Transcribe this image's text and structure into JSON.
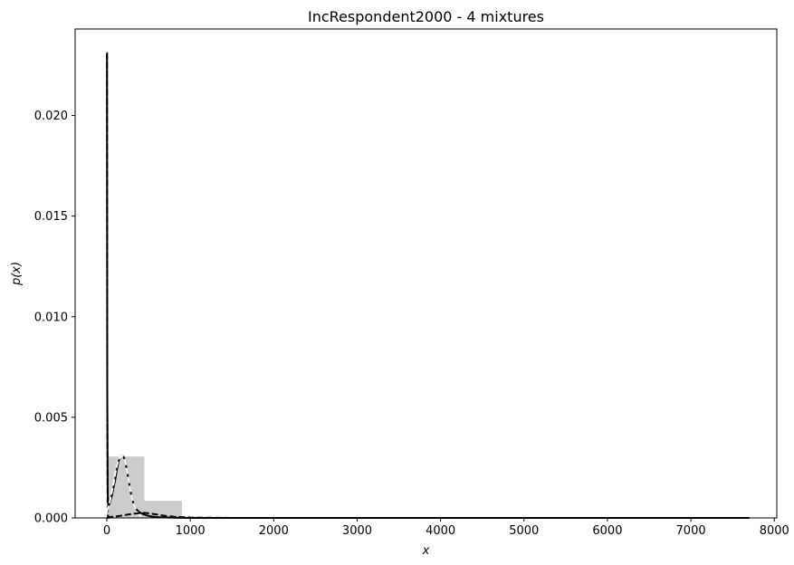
{
  "chart_data": {
    "type": "line",
    "title": "IncRespondent2000 - 4 mixtures",
    "xlabel": "x",
    "ylabel": "p(x)",
    "xlim": [
      -380,
      8030
    ],
    "ylim": [
      0,
      0.0243
    ],
    "x_ticks": [
      0,
      1000,
      2000,
      3000,
      4000,
      5000,
      6000,
      7000,
      8000
    ],
    "y_ticks": [
      0.0,
      0.005,
      0.01,
      0.015,
      0.02
    ],
    "x_tick_labels": [
      "0",
      "1000",
      "2000",
      "3000",
      "4000",
      "5000",
      "6000",
      "7000",
      "8000"
    ],
    "y_tick_labels": [
      "0.000",
      "0.005",
      "0.010",
      "0.015",
      "0.020"
    ],
    "grid": false,
    "histogram": {
      "color": "#cccccc",
      "bins": [
        {
          "x0": 0,
          "x1": 450,
          "value": 0.00305
        },
        {
          "x0": 450,
          "x1": 900,
          "value": 0.00085
        },
        {
          "x0": 900,
          "x1": 7700,
          "value": 0.0
        }
      ]
    },
    "series": [
      {
        "style": "solid",
        "color": "#000000",
        "x": [
          0,
          2,
          5,
          10,
          20,
          40,
          60,
          80,
          100,
          120,
          140,
          160,
          180,
          200,
          220,
          240,
          260,
          280,
          300,
          320,
          340,
          360,
          380,
          400,
          450,
          500,
          550,
          600,
          700,
          800,
          1000,
          2000,
          4000,
          6000,
          7700
        ],
        "y": [
          0.0231,
          0.0231,
          0.0065,
          0.0012,
          0.0006,
          0.0008,
          0.0011,
          0.0015,
          0.0019,
          0.0024,
          0.0028,
          0.00302,
          0.0031,
          0.00305,
          0.0028,
          0.0024,
          0.0019,
          0.0014,
          0.001,
          0.0007,
          0.0005,
          0.0004,
          0.00032,
          0.00026,
          0.00016,
          0.0001,
          6e-05,
          4e-05,
          2e-05,
          1e-05,
          0.0,
          0.0,
          0.0,
          0.0,
          0.0
        ]
      },
      {
        "style": "dashed",
        "color": "#000000",
        "x": [
          0,
          2,
          5,
          10,
          15,
          20,
          30
        ],
        "y": [
          0.0231,
          0.0231,
          0.0062,
          0.0005,
          0.0001,
          0.0,
          0.0
        ]
      },
      {
        "style": "dashed",
        "color": "#ffffff",
        "x": [
          0,
          20,
          40,
          60,
          80,
          100,
          120,
          140,
          160,
          180,
          200,
          220,
          240,
          260,
          280,
          300,
          320,
          340,
          360,
          380,
          400,
          450
        ],
        "y": [
          0.0003,
          0.0006,
          0.0009,
          0.0013,
          0.0017,
          0.0022,
          0.0026,
          0.0029,
          0.00302,
          0.0031,
          0.00303,
          0.0028,
          0.0024,
          0.0019,
          0.0014,
          0.001,
          0.0007,
          0.0005,
          0.0003,
          0.0002,
          0.0001,
          2e-05
        ]
      },
      {
        "style": "dashed",
        "color": "#000000",
        "x": [
          0,
          100,
          200,
          300,
          400,
          450,
          500,
          600,
          700,
          800,
          1000,
          1500,
          2000,
          4000,
          7700
        ],
        "y": [
          3e-05,
          7e-05,
          0.00013,
          0.0002,
          0.00024,
          0.00025,
          0.00023,
          0.00017,
          0.0001,
          6e-05,
          2e-05,
          0.0,
          0.0,
          0.0,
          0.0
        ]
      }
    ]
  }
}
